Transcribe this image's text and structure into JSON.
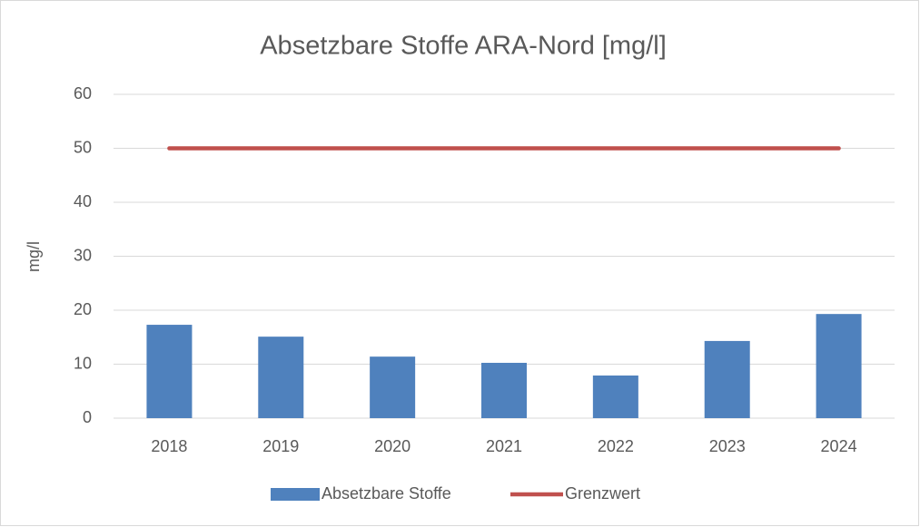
{
  "chart_data": {
    "type": "bar",
    "title": "Absetzbare Stoffe ARA-Nord [mg/l]",
    "y_label": "mg/l",
    "categories": [
      "2018",
      "2019",
      "2020",
      "2021",
      "2022",
      "2023",
      "2024"
    ],
    "series": [
      {
        "name": "Absetzbare Stoffe",
        "type": "bar",
        "color": "#4f81bd",
        "values": [
          17.3,
          15.1,
          11.4,
          10.25,
          7.9,
          14.3,
          19.3
        ]
      },
      {
        "name": "Grenzwert",
        "type": "line",
        "color": "#c0504d",
        "values": [
          50,
          50,
          50,
          50,
          50,
          50,
          50
        ]
      }
    ],
    "ylim": [
      0,
      60
    ],
    "yticks": [
      0,
      10,
      20,
      30,
      40,
      50,
      60
    ],
    "grid": true,
    "legend": "bottom"
  }
}
